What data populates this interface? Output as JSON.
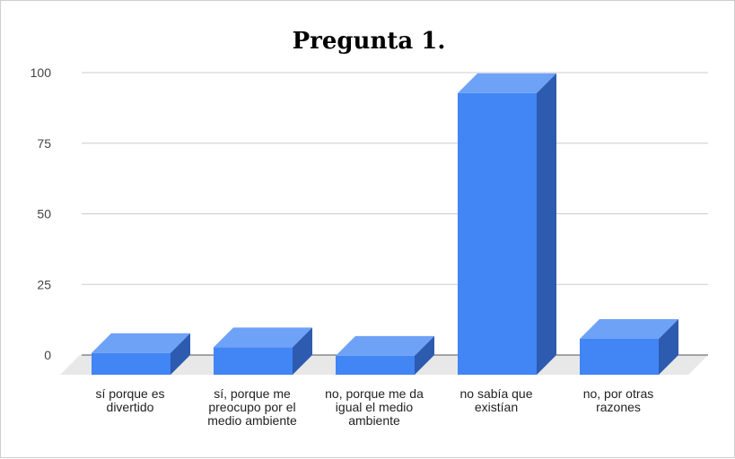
{
  "chart_data": {
    "type": "bar",
    "title": "Pregunta 1.",
    "xlabel": "",
    "ylabel": "",
    "ylim": [
      0,
      100
    ],
    "yticks": [
      "0",
      "25",
      "50",
      "75",
      "100"
    ],
    "grid": true,
    "legend": "none",
    "three_d": true,
    "categories": [
      [
        "sí porque es",
        "divertido"
      ],
      [
        "sí, porque me",
        "preocupo por el",
        "medio ambiente"
      ],
      [
        "no, porque me da",
        "igual el medio",
        "ambiente"
      ],
      [
        "no sabía que",
        "existían"
      ],
      [
        "no, por otras",
        "razones"
      ]
    ],
    "values": [
      2,
      4,
      1,
      94,
      7
    ],
    "colors": {
      "front": "#4285f4",
      "top": "#6da2f6",
      "side": "#2d5bb0",
      "floor": "#e8e8e8"
    }
  }
}
